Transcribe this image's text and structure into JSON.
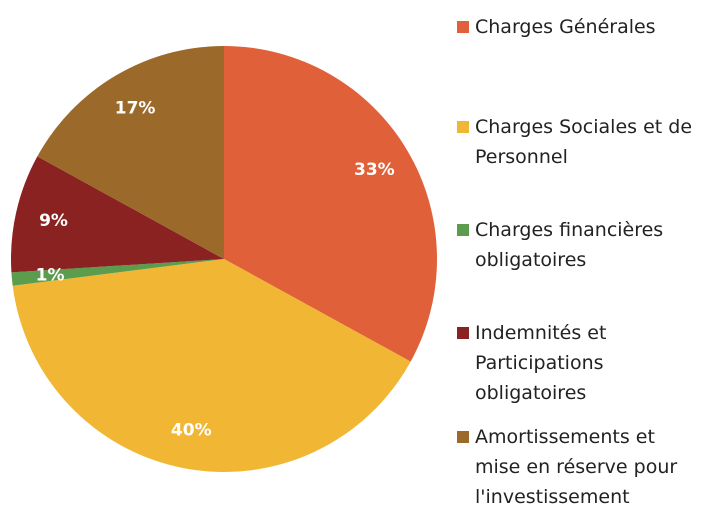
{
  "chart_data": {
    "type": "pie",
    "categories": [
      "Charges Générales",
      "Charges Sociales et de Personnel",
      "Charges financières obligatoires",
      "Indemnités et Participations obligatoires",
      "Amortissements et mise en réserve pour l'investissement"
    ],
    "values": [
      33,
      40,
      1,
      9,
      17
    ],
    "value_labels": [
      "33%",
      "40%",
      "1%",
      "9%",
      "17%"
    ],
    "colors": [
      "#e0603a",
      "#f1b633",
      "#5b9d4c",
      "#8a2222",
      "#9b6a2a"
    ],
    "legend": "right"
  }
}
